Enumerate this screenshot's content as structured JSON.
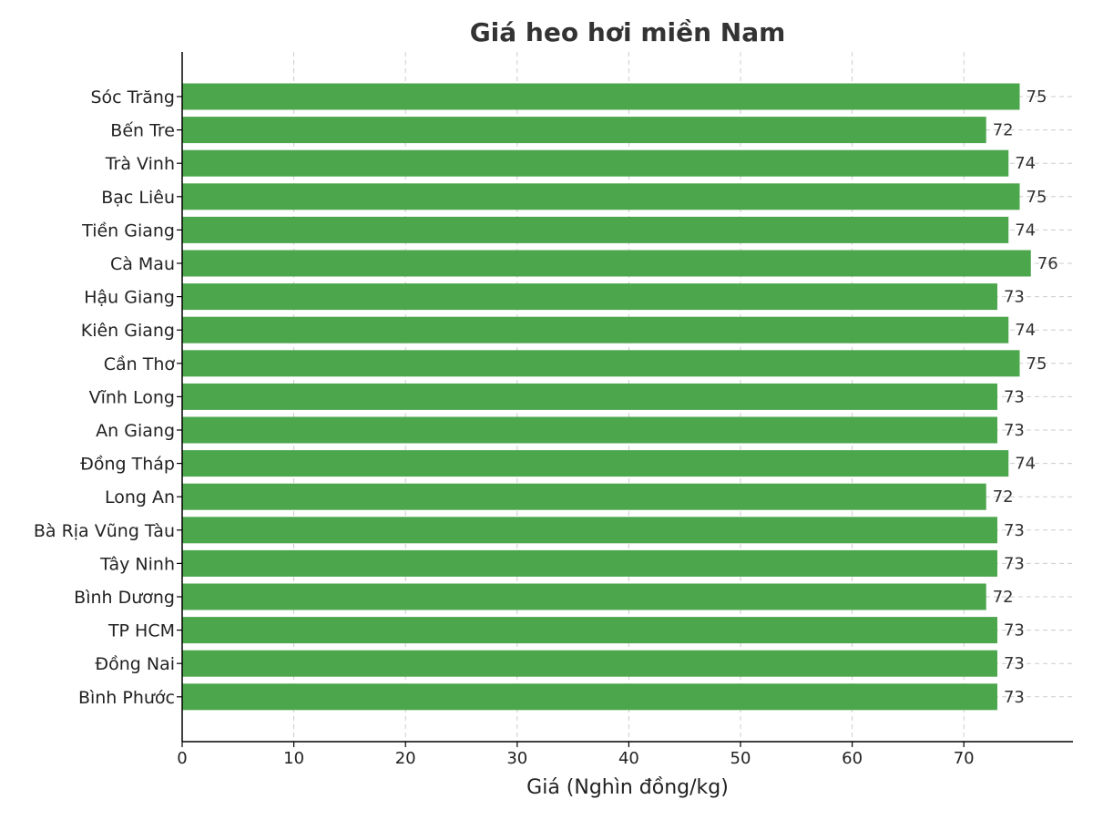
{
  "chart_data": {
    "type": "bar",
    "orientation": "horizontal",
    "title": "Giá heo hơi miền Nam",
    "xlabel": "Giá (Nghìn đồng/kg)",
    "ylabel": "",
    "xlim": [
      0,
      80
    ],
    "xticks": [
      0,
      10,
      20,
      30,
      40,
      50,
      60,
      70
    ],
    "grid": true,
    "bar_color": "#4CA64C",
    "categories": [
      "Sóc Trăng",
      "Bến Tre",
      "Trà Vinh",
      "Bạc Liêu",
      "Tiền Giang",
      "Cà Mau",
      "Hậu Giang",
      "Kiên Giang",
      "Cần Thơ",
      "Vĩnh Long",
      "An Giang",
      "Đồng Tháp",
      "Long An",
      "Bà Rịa Vũng Tàu",
      "Tây Ninh",
      "Bình Dương",
      "TP HCM",
      "Đồng Nai",
      "Bình Phước"
    ],
    "values": [
      75,
      72,
      74,
      75,
      74,
      76,
      73,
      74,
      75,
      73,
      73,
      74,
      72,
      73,
      73,
      72,
      73,
      73,
      73
    ]
  }
}
